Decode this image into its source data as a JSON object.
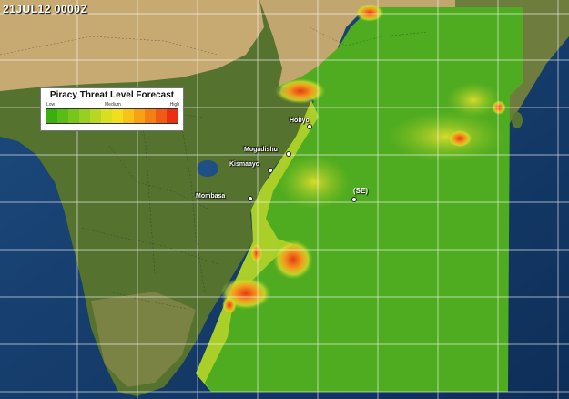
{
  "map": {
    "timestamp": "21JUL12 0000Z",
    "legend": {
      "title": "Piracy Threat Level Forecast",
      "low": "Low",
      "medium": "Medium",
      "high": "High",
      "colors": [
        "#3ab00f",
        "#58bd14",
        "#78c61b",
        "#98cf20",
        "#b8d624",
        "#d8de22",
        "#f2de1c",
        "#f6c316",
        "#f6a214",
        "#f47f14",
        "#f05a14",
        "#ea2f12"
      ]
    },
    "cities": [
      {
        "name": "Hobyo"
      },
      {
        "name": "Mogadishu"
      },
      {
        "name": "Kismaayo"
      },
      {
        "name": "Mombasa"
      }
    ],
    "storm_label": "(SE)",
    "colors": {
      "ocean": "#153c6b",
      "land": "#5f7a37",
      "desert": "#c8a96e",
      "forecast_green": "#4eaa1e",
      "forecast_yellow": "#c9d62b",
      "forecast_orange": "#f08a1e",
      "forecast_red": "#e73a14",
      "grid": "#ffffff"
    }
  }
}
